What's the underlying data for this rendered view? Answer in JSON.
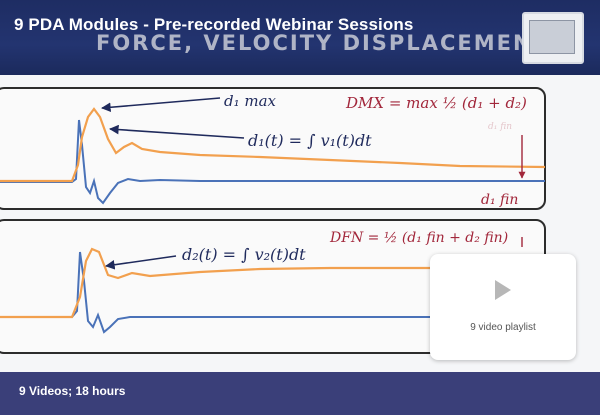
{
  "header": {
    "title": "9 PDA Modules - Pre-recorded Webinar Sessions",
    "subtitle": "FORCE, VELOCITY DISPLACEMENT"
  },
  "slide": {
    "label_d1max": "d₁ max",
    "eq_d1": "d₁(t)  =  ∫ v₁(t)dt",
    "eq_dmx": "DMX  = max  ½ (d₁ + d₂)",
    "label_d1fin": "d₁ fin",
    "eq_d2": "d₂(t) = ∫ v₂(t)dt",
    "eq_dfn": "DFN  =  ½ (d₁ fin  +  d₂ fin)",
    "faint_label": "d₁ fin"
  },
  "playlist": {
    "label": "9 video playlist",
    "icon": "play-icon"
  },
  "footer": {
    "text": "9 Videos; 18 hours"
  },
  "colors": {
    "header_bg": "#1e2d63",
    "footer_bg": "#3a3f79",
    "orange_trace": "#f2a04e",
    "blue_trace": "#4a72b8",
    "arrow": "#1f2a5c",
    "accent_red": "#a2273b"
  }
}
